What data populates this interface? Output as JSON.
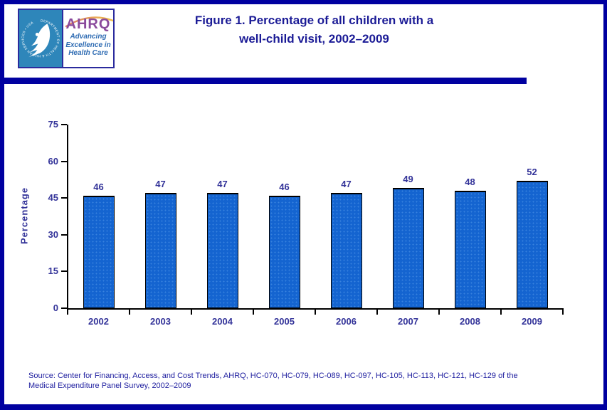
{
  "header": {
    "title_line1": "Figure 1. Percentage of all children with a",
    "title_line2": "well-child visit, 2002–2009",
    "logo": {
      "acronym": "AHRQ",
      "seal_text": "DEPARTMENT OF HEALTH & HUMAN SERVICES • USA",
      "tagline_line1": "Advancing",
      "tagline_line2": "Excellence in",
      "tagline_line3": "Health Care"
    }
  },
  "chart_data": {
    "type": "bar",
    "title": "Figure 1. Percentage of all children with a well-child visit, 2002–2009",
    "categories": [
      "2002",
      "2003",
      "2004",
      "2005",
      "2006",
      "2007",
      "2008",
      "2009"
    ],
    "values": [
      46,
      47,
      47,
      46,
      47,
      49,
      48,
      52
    ],
    "xlabel": "",
    "ylabel": "Percentage",
    "yticks": [
      0,
      15,
      30,
      45,
      60,
      75
    ],
    "ylim": [
      0,
      75
    ],
    "grid": false,
    "legend": "none",
    "bar_color": "#1464D0",
    "bar_border_color": "#000000",
    "label_color": "#333399"
  },
  "footer": {
    "source_line1": "Source: Center for Financing, Access, and Cost Trends, AHRQ, HC-070, HC-079, HC-089, HC-097, HC-105, HC-113, HC-121, HC-129 of the",
    "source_line2": "Medical Expenditure Panel Survey, 2002–2009"
  },
  "colors": {
    "frame_navy": "#0000A0",
    "title_navy": "#1B1B96",
    "source_navy": "#2020A0",
    "hhs_blue": "#2E86BA",
    "ahrq_purple": "#8A4A9C",
    "tagline_blue": "#2F6CB3",
    "arc_orange": "#E8973C"
  }
}
